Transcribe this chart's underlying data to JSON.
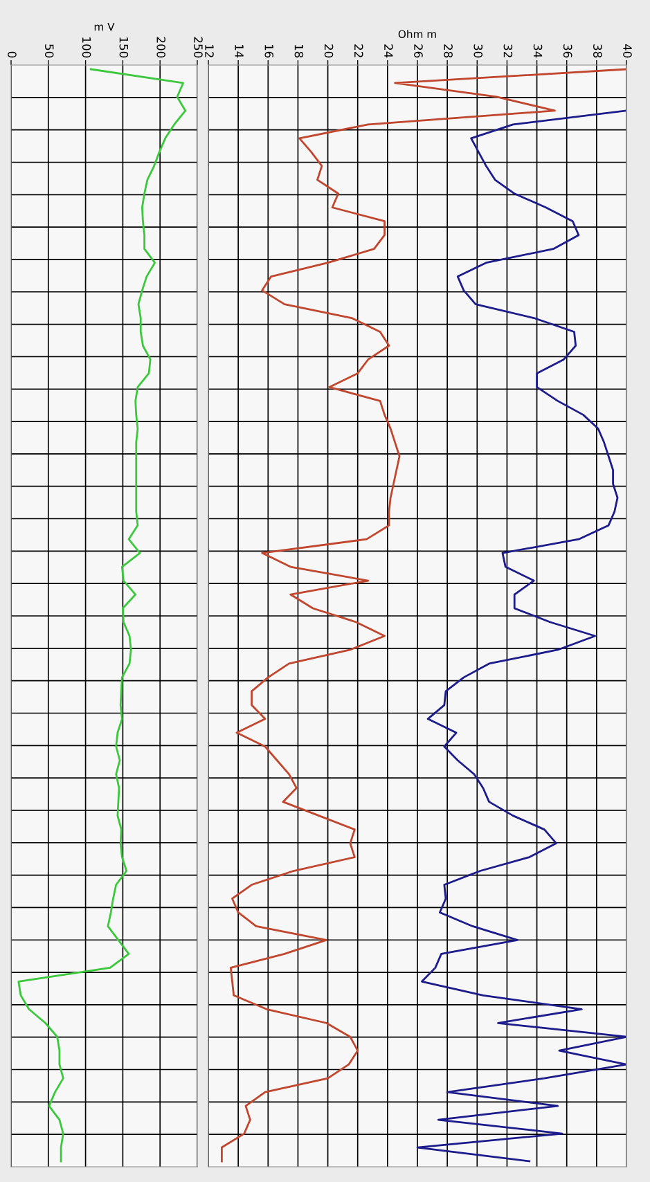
{
  "chart_data": [
    {
      "type": "line",
      "orientation": "horizontal",
      "xlabel": "m V",
      "xlim": [
        0,
        250
      ],
      "xticks": [
        0,
        50,
        100,
        150,
        200,
        250
      ],
      "grid": true,
      "tick_labels": "x",
      "categories": [
        null,
        null,
        null,
        null,
        null,
        null,
        null,
        null,
        null,
        null,
        null,
        null,
        null,
        null,
        null,
        null,
        null,
        null,
        null,
        null,
        null,
        null,
        null,
        null,
        null,
        null,
        null,
        null,
        null,
        null,
        null,
        null,
        null,
        null,
        null,
        null,
        null,
        null,
        null,
        null,
        null,
        null,
        null,
        null,
        null,
        null,
        null,
        null,
        null,
        null,
        null,
        null,
        null,
        null,
        null,
        null,
        null,
        null,
        null,
        null,
        null,
        null,
        null,
        null,
        null,
        null,
        null,
        null,
        null,
        null,
        null,
        null,
        null,
        null,
        null,
        null,
        null,
        null,
        null,
        null
      ],
      "series": [
        {
          "color": "#3cc83c",
          "values": [
            107,
            231,
            223,
            234,
            219,
            207,
            199,
            192,
            183,
            179,
            176,
            177,
            179,
            179,
            193,
            182,
            176,
            171,
            174,
            174,
            177,
            187,
            185,
            170,
            167,
            168,
            170,
            168,
            168,
            168,
            168,
            168,
            168,
            170,
            158,
            173,
            149,
            151,
            167,
            150,
            151,
            159,
            161,
            159,
            149,
            148,
            147,
            149,
            143,
            141,
            146,
            141,
            145,
            144,
            143,
            148,
            147,
            149,
            155,
            141,
            137,
            134,
            130,
            144,
            158,
            133,
            10,
            13,
            24,
            46,
            62,
            65,
            65,
            70,
            59,
            51,
            65,
            70,
            67,
            67
          ]
        }
      ]
    },
    {
      "type": "line",
      "orientation": "horizontal",
      "xlabel": "Ohm m",
      "xlim": [
        12,
        40
      ],
      "xticks": [
        12,
        14,
        16,
        18,
        20,
        22,
        24,
        26,
        28,
        30,
        32,
        34,
        36,
        38,
        40
      ],
      "grid": true,
      "tick_labels": "x",
      "categories": [
        null,
        null,
        null,
        null,
        null,
        null,
        null,
        null,
        null,
        null,
        null,
        null,
        null,
        null,
        null,
        null,
        null,
        null,
        null,
        null,
        null,
        null,
        null,
        null,
        null,
        null,
        null,
        null,
        null,
        null,
        null,
        null,
        null,
        null,
        null,
        null,
        null,
        null,
        null,
        null,
        null,
        null,
        null,
        null,
        null,
        null,
        null,
        null,
        null,
        null,
        null,
        null,
        null,
        null,
        null,
        null,
        null,
        null,
        null,
        null,
        null,
        null,
        null,
        null,
        null,
        null,
        null,
        null,
        null,
        null,
        null,
        null,
        null,
        null,
        null,
        null,
        null,
        null,
        null,
        null
      ],
      "series": [
        {
          "color": "#c0462e",
          "values": [
            40,
            24.5,
            31.3,
            35.2,
            22.7,
            18.1,
            18.9,
            19.6,
            19.3,
            20.7,
            20.3,
            23.8,
            23.8,
            23.1,
            20.0,
            16.2,
            15.6,
            17.1,
            21.6,
            23.5,
            24.1,
            22.7,
            22.0,
            20.1,
            23.5,
            23.8,
            24.2,
            24.5,
            24.8,
            24.6,
            24.4,
            24.2,
            24.1,
            24.1,
            22.6,
            15.6,
            17.5,
            22.7,
            17.5,
            19.0,
            21.9,
            23.8,
            21.5,
            17.4,
            16.0,
            14.9,
            14.9,
            15.8,
            13.9,
            15.8,
            16.6,
            17.4,
            17.9,
            17.0,
            19.4,
            21.8,
            21.5,
            21.8,
            17.7,
            14.9,
            13.6,
            14.0,
            15.2,
            19.9,
            17.1,
            13.5,
            13.6,
            13.7,
            15.9,
            19.9,
            21.5,
            22.0,
            21.4,
            20.0,
            15.8,
            14.5,
            14.8,
            14.4,
            12.9,
            12.9
          ]
        },
        {
          "color": "#1c1c8c",
          "values": [
            null,
            null,
            null,
            40,
            32.4,
            29.6,
            30.1,
            30.6,
            31.2,
            32.5,
            34.6,
            36.4,
            36.8,
            35.1,
            30.6,
            28.7,
            29.1,
            29.9,
            33.8,
            36.5,
            36.6,
            35.8,
            34.0,
            34.0,
            35.4,
            37.1,
            38.1,
            38.5,
            38.8,
            39.1,
            39.1,
            39.4,
            39.2,
            38.8,
            36.8,
            31.7,
            31.9,
            33.8,
            32.5,
            32.5,
            34.9,
            37.9,
            35.4,
            30.8,
            29.1,
            27.9,
            27.8,
            26.7,
            28.6,
            27.8,
            28.7,
            29.8,
            30.4,
            30.8,
            32.4,
            34.5,
            35.3,
            33.5,
            30.2,
            27.8,
            27.9,
            27.5,
            29.7,
            32.7,
            27.6,
            27.2,
            26.3,
            30.4,
            37.0,
            31.4,
            40.0,
            35.5,
            40.0,
            34.5,
            28.0,
            35.4,
            27.4,
            35.7,
            26.0,
            33.5
          ]
        }
      ]
    }
  ]
}
